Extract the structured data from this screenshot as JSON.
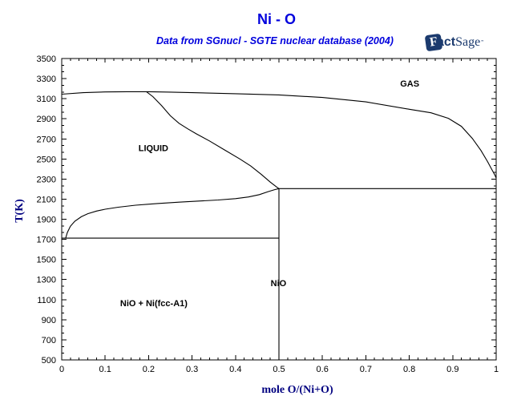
{
  "chart_data": {
    "type": "line",
    "title": "Ni - O",
    "subtitle": "Data from SGnucl - SGTE nuclear database (2004)",
    "xlabel": "mole O/(Ni+O)",
    "ylabel": "T(K)",
    "xlim": [
      0,
      1
    ],
    "ylim": [
      500,
      3500
    ],
    "grid": false,
    "x_ticks": {
      "values": [
        0,
        0.1,
        0.2,
        0.3,
        0.4,
        0.5,
        0.6,
        0.7,
        0.8,
        0.9,
        1
      ],
      "labels": [
        "0",
        "0.1",
        "0.2",
        "0.3",
        "0.4",
        "0.5",
        "0.6",
        "0.7",
        "0.8",
        "0.9",
        "1"
      ],
      "minor_step": 0.02
    },
    "y_ticks": {
      "values": [
        500,
        700,
        900,
        1100,
        1300,
        1500,
        1700,
        1900,
        2100,
        2300,
        2500,
        2700,
        2900,
        3100,
        3300,
        3500
      ],
      "labels": [
        "500",
        "700",
        "900",
        "1100",
        "1300",
        "1500",
        "1700",
        "1900",
        "2100",
        "2300",
        "2500",
        "2700",
        "2900",
        "3100",
        "3300",
        "3500"
      ],
      "minors_per_major": 2
    },
    "line_color": "#000000",
    "series": [
      {
        "name": "gas-liquid-boundary",
        "points": [
          [
            0,
            3145
          ],
          [
            0.05,
            3160
          ],
          [
            0.1,
            3167
          ],
          [
            0.15,
            3170
          ],
          [
            0.2,
            3170
          ],
          [
            0.25,
            3166
          ],
          [
            0.3,
            3160
          ],
          [
            0.4,
            3150
          ],
          [
            0.5,
            3138
          ],
          [
            0.6,
            3112
          ],
          [
            0.7,
            3068
          ],
          [
            0.8,
            2995
          ],
          [
            0.85,
            2960
          ],
          [
            0.89,
            2905
          ],
          [
            0.92,
            2825
          ],
          [
            0.945,
            2705
          ],
          [
            0.965,
            2585
          ],
          [
            0.98,
            2475
          ],
          [
            0.99,
            2395
          ],
          [
            0.997,
            2340
          ],
          [
            1.0,
            2310
          ]
        ]
      },
      {
        "name": "liquidus-gas-branch",
        "points": [
          [
            0.195,
            3170
          ],
          [
            0.21,
            3120
          ],
          [
            0.23,
            3030
          ],
          [
            0.25,
            2930
          ],
          [
            0.27,
            2855
          ],
          [
            0.29,
            2800
          ],
          [
            0.31,
            2750
          ],
          [
            0.34,
            2680
          ],
          [
            0.375,
            2590
          ],
          [
            0.41,
            2500
          ],
          [
            0.435,
            2430
          ],
          [
            0.46,
            2345
          ],
          [
            0.48,
            2270
          ],
          [
            0.495,
            2220
          ],
          [
            0.5,
            2205
          ]
        ]
      },
      {
        "name": "nio-liquidus",
        "points": [
          [
            0.009,
            1712
          ],
          [
            0.013,
            1768
          ],
          [
            0.02,
            1830
          ],
          [
            0.03,
            1880
          ],
          [
            0.045,
            1925
          ],
          [
            0.06,
            1955
          ],
          [
            0.08,
            1982
          ],
          [
            0.1,
            2000
          ],
          [
            0.13,
            2020
          ],
          [
            0.17,
            2040
          ],
          [
            0.22,
            2057
          ],
          [
            0.27,
            2070
          ],
          [
            0.32,
            2082
          ],
          [
            0.36,
            2092
          ],
          [
            0.4,
            2105
          ],
          [
            0.43,
            2122
          ],
          [
            0.455,
            2145
          ],
          [
            0.475,
            2175
          ],
          [
            0.49,
            2195
          ],
          [
            0.5,
            2205
          ]
        ]
      },
      {
        "name": "eutectic-isotherm-1712K",
        "points": [
          [
            0,
            1712
          ],
          [
            0.5,
            1712
          ]
        ]
      },
      {
        "name": "nio-melting-isotherm-2205K",
        "points": [
          [
            0.5,
            2205
          ],
          [
            1.0,
            2205
          ]
        ]
      },
      {
        "name": "nio-stoichiometric-line",
        "points": [
          [
            0.5,
            500
          ],
          [
            0.5,
            2205
          ]
        ]
      }
    ],
    "region_labels": [
      {
        "id": "gas",
        "text": "GAS",
        "x": 0.801,
        "T": 3253
      },
      {
        "id": "liquid",
        "text": "LIQUID",
        "x": 0.211,
        "T": 2610
      },
      {
        "id": "nio",
        "text": "NiO",
        "x": 0.499,
        "T": 1266
      },
      {
        "id": "nio-ni-fcc",
        "text": "NiO + Ni(fcc-A1)",
        "x": 0.212,
        "T": 1065
      }
    ]
  },
  "logo": {
    "mark_letter": "F",
    "word_bold": "act",
    "word_serif": "Sage",
    "trademark": "”"
  }
}
